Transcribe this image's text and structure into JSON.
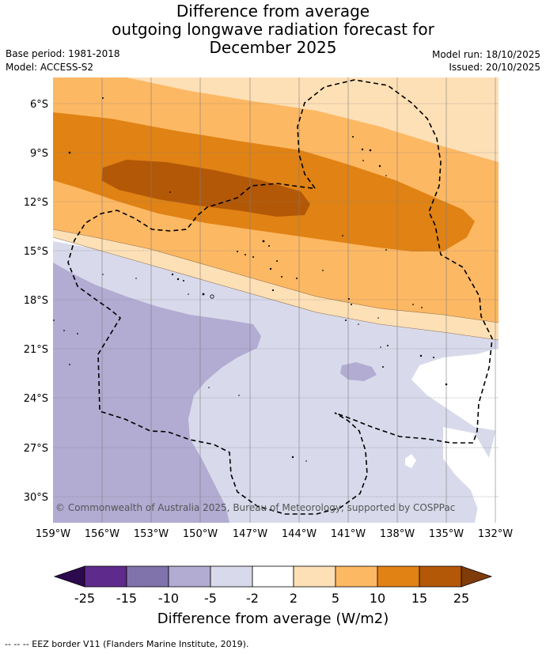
{
  "header": {
    "title_lines": [
      "Difference from average",
      "outgoing longwave radiation forecast for",
      "December 2025"
    ],
    "base_period": "Base period: 1981-2018",
    "model": "Model: ACCESS-S2",
    "model_run": "Model run: 18/10/2025",
    "issued": "Issued: 20/10/2025"
  },
  "map": {
    "lon_labels": [
      "159°W",
      "156°W",
      "153°W",
      "150°W",
      "147°W",
      "144°W",
      "141°W",
      "138°W",
      "135°W",
      "132°W"
    ],
    "lat_labels": [
      "6°S",
      "9°S",
      "12°S",
      "15°S",
      "18°S",
      "21°S",
      "24°S",
      "27°S",
      "30°S"
    ],
    "credit": "© Commonwealth of Australia 2025, Bureau of Meteorology, supported by COSPPac"
  },
  "colorbar": {
    "ticks": [
      "-25",
      "-15",
      "-10",
      "-5",
      "-2",
      "2",
      "5",
      "10",
      "15",
      "25"
    ],
    "title": "Difference from average (W/m2)",
    "colors": {
      "below": "#2d0a4e",
      "c1": "#5e2a8c",
      "c2": "#8073ac",
      "c3": "#b2abd2",
      "c4": "#d8daeb",
      "c5": "#ffffff",
      "c6": "#fee0b6",
      "c7": "#fdb863",
      "c8": "#e08214",
      "c9": "#b35806",
      "above": "#7f3b08"
    }
  },
  "footer": {
    "legend_text": "--  --  -- EEZ border V11 (Flanders Marine Institute, 2019)."
  }
}
